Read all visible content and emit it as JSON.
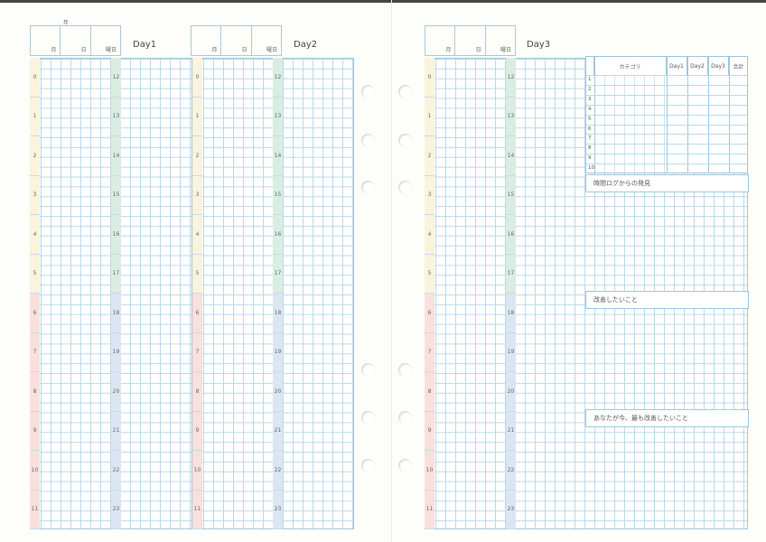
{
  "header": {
    "year_label": "年",
    "month_label": "月",
    "day_label": "日",
    "weekday_label": "曜日"
  },
  "days": [
    {
      "label": "Day1"
    },
    {
      "label": "Day2"
    },
    {
      "label": "Day3"
    }
  ],
  "hours_am": [
    "0",
    "1",
    "2",
    "3",
    "4",
    "5",
    "6",
    "7",
    "8",
    "9",
    "10",
    "11"
  ],
  "hours_pm": [
    "12",
    "13",
    "14",
    "15",
    "16",
    "17",
    "18",
    "19",
    "20",
    "21",
    "22",
    "23"
  ],
  "colors": {
    "am_early": "#fbf3dc",
    "am_late": "#f9e0dc",
    "pm_early": "#d9ede2",
    "pm_late": "#dbe6f2",
    "grid": "#b9d9ea"
  },
  "summary": {
    "headers": {
      "category": "カテゴリ",
      "day1": "Day1",
      "day2": "Day2",
      "day3": "Day3",
      "total": "合計"
    },
    "rows": [
      "1",
      "2",
      "3",
      "4",
      "5",
      "6",
      "7",
      "8",
      "9",
      "10"
    ]
  },
  "sections": {
    "findings": "時間ログからの発見",
    "improve": "改善したいこと",
    "most_improve": "あなたが今、最も改善したいこと"
  }
}
